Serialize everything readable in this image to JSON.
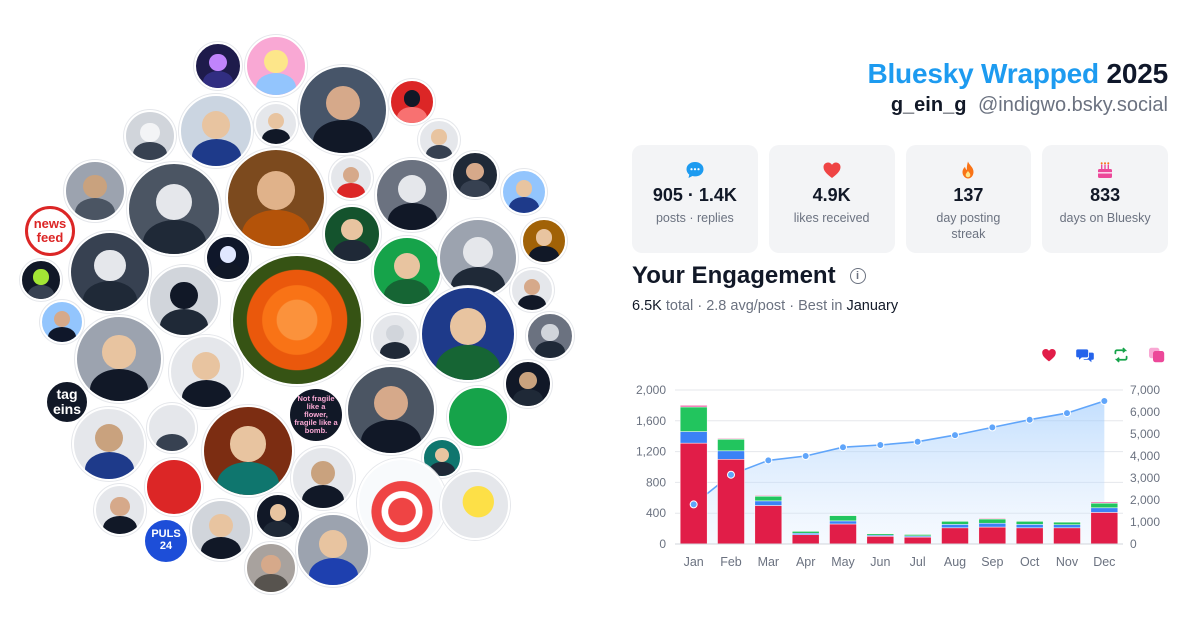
{
  "header": {
    "title_brand": "Bluesky Wrapped",
    "title_year": "2025",
    "display_name": "g_ein_g",
    "handle": "@indigwo.bsky.social"
  },
  "avatars": {
    "text_badges": [
      "news feed",
      "tag eins",
      "PULS 24",
      "Not fragile like a flower, fragile like a bomb."
    ]
  },
  "stats": [
    {
      "icon": "speech-bubble-icon",
      "value": "905 · 1.4K",
      "label": "posts · replies",
      "color": "#1d9bf0"
    },
    {
      "icon": "heart-icon",
      "value": "4.9K",
      "label": "likes received",
      "color": "#ef4444"
    },
    {
      "icon": "flame-icon",
      "value": "137",
      "label": "day posting streak",
      "color": "#f97316"
    },
    {
      "icon": "cake-icon",
      "value": "833",
      "label": "days on Bluesky",
      "color": "#ec4899"
    }
  ],
  "engagement": {
    "title": "Your Engagement",
    "info_symbol": "i",
    "total_value": "6.5K",
    "total_word": "total",
    "avg_value": "2.8",
    "avg_word": "avg/post",
    "best_word": "Best in",
    "best_month": "January"
  },
  "legend": [
    {
      "icon": "heart-icon",
      "color": "#e11d48"
    },
    {
      "icon": "reply-bubbles-icon",
      "color": "#2563eb"
    },
    {
      "icon": "repost-icon",
      "color": "#16a34a"
    },
    {
      "icon": "quote-icon",
      "color": "#ec4899"
    }
  ],
  "chart_data": {
    "type": "bar",
    "categories": [
      "Jan",
      "Feb",
      "Mar",
      "Apr",
      "May",
      "Jun",
      "Jul",
      "Aug",
      "Sep",
      "Oct",
      "Nov",
      "Dec"
    ],
    "series": [
      {
        "values": [
          1310,
          1100,
          500,
          120,
          260,
          100,
          90,
          210,
          220,
          210,
          210,
          410
        ],
        "color": "#e11d48"
      },
      {
        "values": [
          150,
          110,
          60,
          20,
          40,
          15,
          15,
          45,
          50,
          45,
          40,
          60
        ],
        "color": "#3b82f6"
      },
      {
        "values": [
          320,
          150,
          60,
          25,
          70,
          20,
          20,
          40,
          55,
          40,
          35,
          60
        ],
        "color": "#22c55e"
      },
      {
        "values": [
          20,
          10,
          10,
          5,
          5,
          5,
          5,
          5,
          10,
          5,
          5,
          15
        ],
        "color": "#ec4899"
      }
    ],
    "cumulative_line": {
      "values": [
        1800,
        3150,
        3800,
        4000,
        4400,
        4500,
        4650,
        4950,
        5300,
        5650,
        5950,
        6500
      ],
      "color": "#60a5fa"
    },
    "y_left": {
      "ticks": [
        "0",
        "400",
        "800",
        "1,200",
        "1,600",
        "2,000"
      ],
      "min": 0,
      "max": 2000
    },
    "y_right": {
      "ticks": [
        "0",
        "1,000",
        "2,000",
        "3,000",
        "4,000",
        "5,000",
        "6,000",
        "7,000"
      ],
      "min": 0,
      "max": 7000
    },
    "grid": true,
    "stacked": true
  }
}
